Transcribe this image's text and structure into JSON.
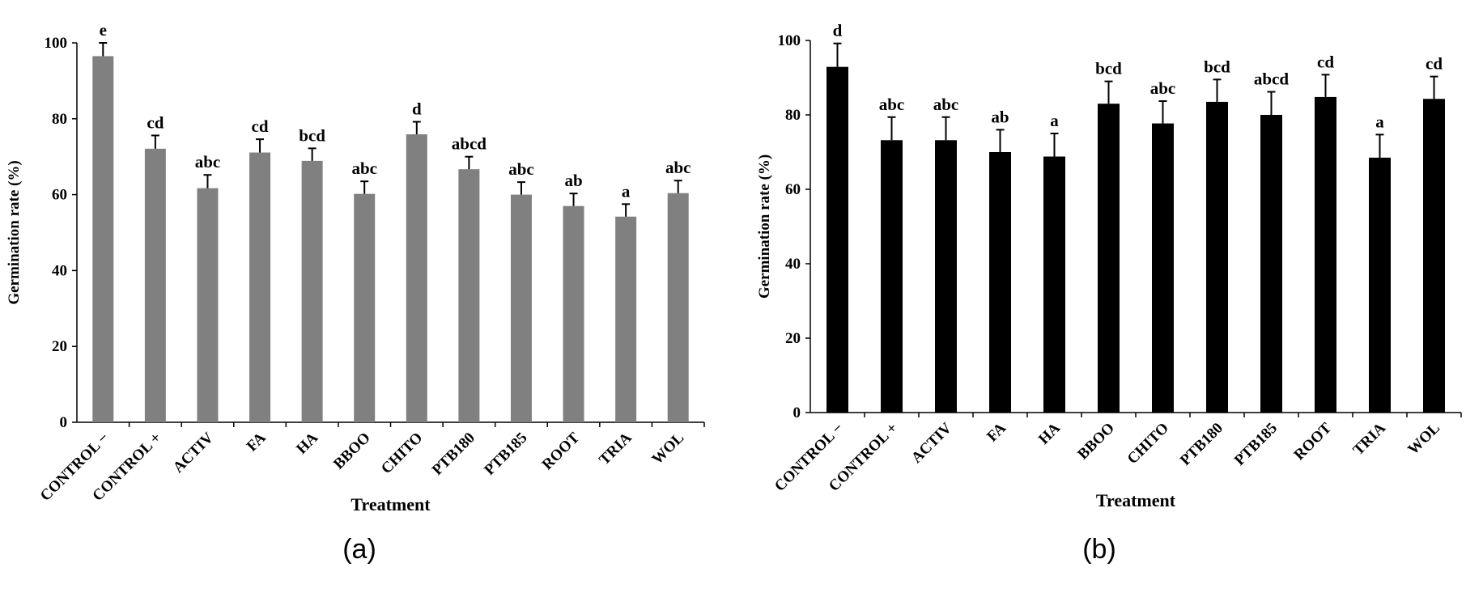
{
  "chart_data": [
    {
      "type": "bar",
      "panel": "(a)",
      "xlabel": "Treatment",
      "ylabel": "Germination rate (%)",
      "categories": [
        "CONTROL −",
        "CONTROL +",
        "ACTIV",
        "FA",
        "HA",
        "BBOO",
        "CHITO",
        "PTB180",
        "PTB185",
        "ROOT",
        "TRIA",
        "WOL"
      ],
      "values": [
        96.5,
        72.1,
        61.7,
        71.1,
        68.9,
        60.2,
        75.9,
        66.7,
        60,
        57,
        54.2,
        60.4
      ],
      "errors": [
        3.5,
        3.5,
        3.5,
        3.5,
        3.3,
        3.3,
        3.3,
        3.3,
        3.3,
        3.3,
        3.3,
        3.3
      ],
      "letters": [
        "e",
        "cd",
        "abc",
        "cd",
        "bcd",
        "abc",
        "d",
        "abcd",
        "abc",
        "ab",
        "a",
        "abc"
      ],
      "color": "#808080",
      "ylim": [
        0,
        100
      ],
      "yticks": [
        0,
        20,
        40,
        60,
        80,
        100
      ]
    },
    {
      "type": "bar",
      "panel": "(b)",
      "xlabel": "Treatment",
      "ylabel": "Germination rate (%)",
      "categories": [
        "CONTROL −",
        "CONTROL +",
        "ACTIV",
        "FA",
        "HA",
        "BBOO",
        "CHITO",
        "PTB180",
        "PTB185",
        "ROOT",
        "TRIA",
        "WOL"
      ],
      "values": [
        92.9,
        73.2,
        73.2,
        70,
        68.8,
        83,
        77.7,
        83.5,
        80,
        84.8,
        68.5,
        84.3
      ],
      "errors": [
        6.3,
        6.2,
        6.2,
        6,
        6.2,
        6,
        6,
        6,
        6.2,
        6,
        6.2,
        6
      ],
      "letters": [
        "d",
        "abc",
        "abc",
        "ab",
        "a",
        "bcd",
        "abc",
        "bcd",
        "abcd",
        "cd",
        "a",
        "cd"
      ],
      "color": "#000000",
      "ylim": [
        0,
        100
      ],
      "yticks": [
        0,
        20,
        40,
        60,
        80,
        100
      ]
    }
  ]
}
